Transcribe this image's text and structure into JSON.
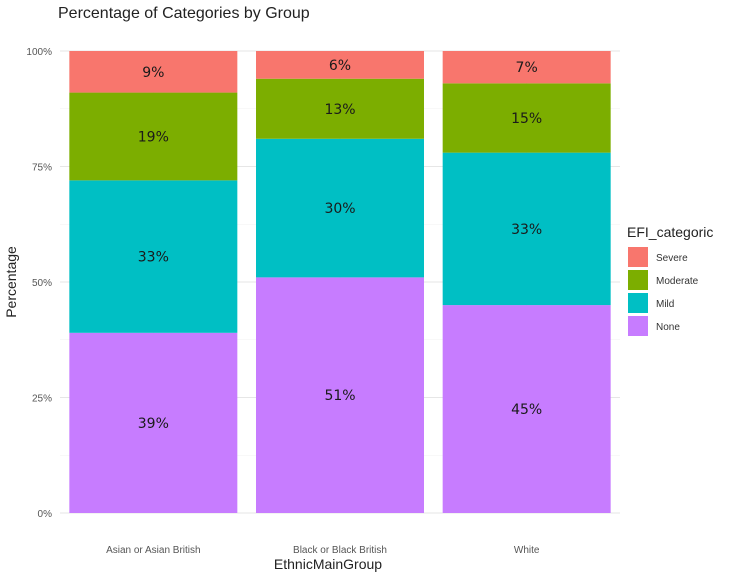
{
  "chart_data": {
    "type": "bar",
    "stacked": true,
    "title": "Percentage of Categories by Group",
    "xlabel": "EthnicMainGroup",
    "ylabel": "Percentage",
    "ylim": [
      0,
      100
    ],
    "y_ticks": [
      {
        "value": 0,
        "label": "0%"
      },
      {
        "value": 25,
        "label": "25%"
      },
      {
        "value": 50,
        "label": "50%"
      },
      {
        "value": 75,
        "label": "75%"
      },
      {
        "value": 100,
        "label": "100%"
      }
    ],
    "categories": [
      "Asian or Asian British",
      "Black or Black British",
      "White"
    ],
    "series": [
      {
        "name": "None",
        "color": "#c77cff",
        "values": [
          39,
          51,
          45
        ],
        "labels": [
          "39%",
          "51%",
          "45%"
        ]
      },
      {
        "name": "Mild",
        "color": "#00bfc4",
        "values": [
          33,
          30,
          33
        ],
        "labels": [
          "33%",
          "30%",
          "33%"
        ]
      },
      {
        "name": "Moderate",
        "color": "#7cae00",
        "values": [
          19,
          13,
          15
        ],
        "labels": [
          "19%",
          "13%",
          "15%"
        ]
      },
      {
        "name": "Severe",
        "color": "#f8766d",
        "values": [
          9,
          6,
          7
        ],
        "labels": [
          "9%",
          "6%",
          "7%"
        ]
      }
    ],
    "legend": {
      "title": "EFI_categoric",
      "position": "right",
      "order": [
        "Severe",
        "Moderate",
        "Mild",
        "None"
      ]
    },
    "grid": true
  }
}
